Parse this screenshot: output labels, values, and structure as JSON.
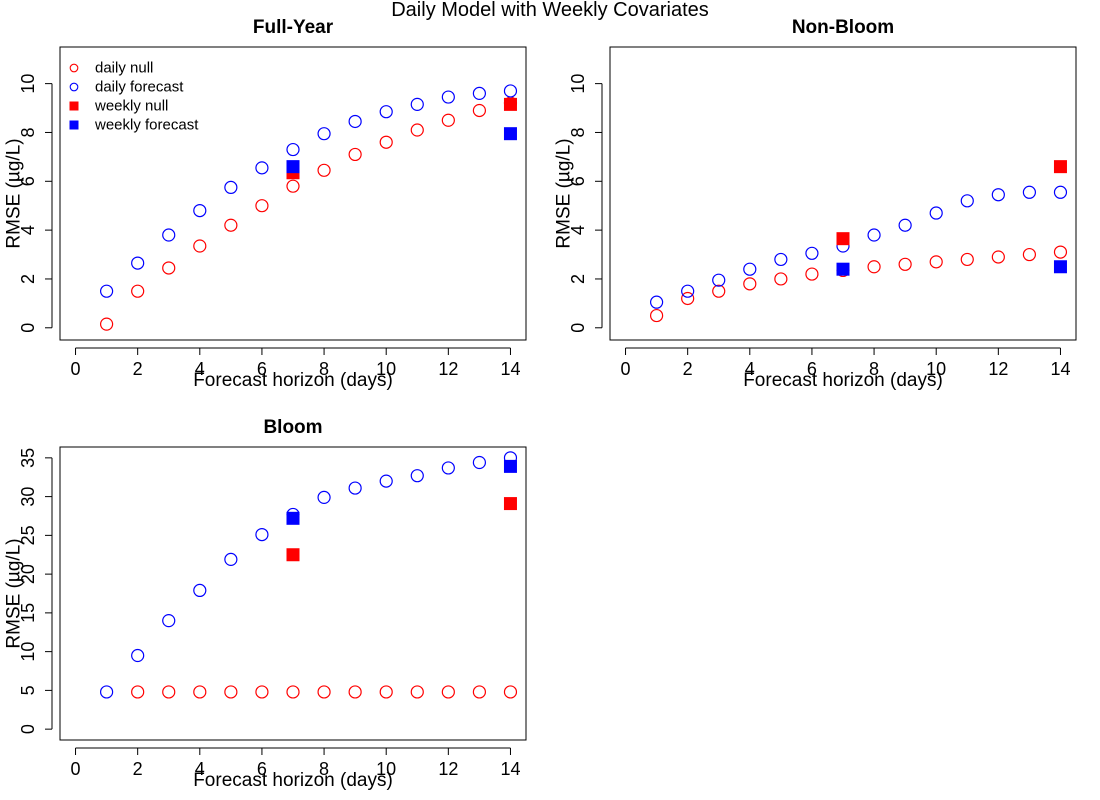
{
  "figure": {
    "title": "Daily Model with Weekly Covariates"
  },
  "colors": {
    "null": "#ff0000",
    "forecast": "#0000ff"
  },
  "legend": {
    "placement": "top-left of Full-Year panel",
    "entries": [
      {
        "label": "daily null",
        "marker": "open-circle",
        "color": "#ff0000"
      },
      {
        "label": "daily forecast",
        "marker": "open-circle",
        "color": "#0000ff"
      },
      {
        "label": "weekly null",
        "marker": "filled-square",
        "color": "#ff0000"
      },
      {
        "label": "weekly forecast",
        "marker": "filled-square",
        "color": "#0000ff"
      }
    ]
  },
  "chart_data": [
    {
      "type": "scatter",
      "title": "Full-Year",
      "xlabel": "Forecast horizon (days)",
      "ylabel": "RMSE (µg/L)",
      "xlim": [
        -0.5,
        14.5
      ],
      "ylim": [
        -0.5,
        11.5
      ],
      "xticks": [
        0,
        2,
        4,
        6,
        8,
        10,
        12,
        14
      ],
      "yticks": [
        0,
        2,
        4,
        6,
        8,
        10
      ],
      "grid": false,
      "series": [
        {
          "name": "daily null",
          "marker": "open-circle",
          "color": "#ff0000",
          "x": [
            1,
            2,
            3,
            4,
            5,
            6,
            7,
            8,
            9,
            10,
            11,
            12,
            13,
            14
          ],
          "y": [
            0.15,
            1.5,
            2.45,
            3.35,
            4.2,
            5.0,
            5.8,
            6.45,
            7.1,
            7.6,
            8.1,
            8.5,
            8.9,
            9.2
          ]
        },
        {
          "name": "daily forecast",
          "marker": "open-circle",
          "color": "#0000ff",
          "x": [
            1,
            2,
            3,
            4,
            5,
            6,
            7,
            8,
            9,
            10,
            11,
            12,
            13,
            14
          ],
          "y": [
            1.5,
            2.65,
            3.8,
            4.8,
            5.75,
            6.55,
            7.3,
            7.95,
            8.45,
            8.85,
            9.15,
            9.45,
            9.6,
            9.7
          ]
        },
        {
          "name": "weekly null",
          "marker": "filled-square",
          "color": "#ff0000",
          "x": [
            7,
            14
          ],
          "y": [
            6.35,
            9.15
          ]
        },
        {
          "name": "weekly forecast",
          "marker": "filled-square",
          "color": "#0000ff",
          "x": [
            7,
            14
          ],
          "y": [
            6.6,
            7.95
          ]
        }
      ]
    },
    {
      "type": "scatter",
      "title": "Non-Bloom",
      "xlabel": "Forecast horizon (days)",
      "ylabel": "RMSE (µg/L)",
      "xlim": [
        -0.5,
        14.5
      ],
      "ylim": [
        -0.5,
        11.5
      ],
      "xticks": [
        0,
        2,
        4,
        6,
        8,
        10,
        12,
        14
      ],
      "yticks": [
        0,
        2,
        4,
        6,
        8,
        10
      ],
      "grid": false,
      "series": [
        {
          "name": "daily null",
          "marker": "open-circle",
          "color": "#ff0000",
          "x": [
            1,
            2,
            3,
            4,
            5,
            6,
            7,
            8,
            9,
            10,
            11,
            12,
            13,
            14
          ],
          "y": [
            0.5,
            1.2,
            1.5,
            1.8,
            2.0,
            2.2,
            2.35,
            2.5,
            2.6,
            2.7,
            2.8,
            2.9,
            3.0,
            3.1
          ]
        },
        {
          "name": "daily forecast",
          "marker": "open-circle",
          "color": "#0000ff",
          "x": [
            1,
            2,
            3,
            4,
            5,
            6,
            7,
            8,
            9,
            10,
            11,
            12,
            13,
            14
          ],
          "y": [
            1.05,
            1.5,
            1.95,
            2.4,
            2.8,
            3.05,
            3.35,
            3.8,
            4.2,
            4.7,
            5.2,
            5.45,
            5.55,
            5.55
          ]
        },
        {
          "name": "weekly null",
          "marker": "filled-square",
          "color": "#ff0000",
          "x": [
            7,
            14
          ],
          "y": [
            3.65,
            6.6
          ]
        },
        {
          "name": "weekly forecast",
          "marker": "filled-square",
          "color": "#0000ff",
          "x": [
            7,
            14
          ],
          "y": [
            2.4,
            2.5
          ]
        }
      ]
    },
    {
      "type": "scatter",
      "title": "Bloom",
      "xlabel": "Forecast horizon (days)",
      "ylabel": "RMSE (µg/L)",
      "xlim": [
        -0.5,
        14.5
      ],
      "ylim": [
        -1.4,
        36.4
      ],
      "xticks": [
        0,
        2,
        4,
        6,
        8,
        10,
        12,
        14
      ],
      "yticks": [
        0,
        5,
        10,
        15,
        20,
        25,
        30,
        35
      ],
      "grid": false,
      "series": [
        {
          "name": "daily null",
          "marker": "open-circle",
          "color": "#ff0000",
          "x": [
            2,
            3,
            4,
            5,
            6,
            7,
            8,
            9,
            10,
            11,
            12,
            13,
            14
          ],
          "y": [
            4.8,
            4.8,
            4.8,
            4.8,
            4.8,
            4.8,
            4.8,
            4.8,
            4.8,
            4.8,
            4.8,
            4.8,
            4.8
          ]
        },
        {
          "name": "daily forecast",
          "marker": "open-circle",
          "color": "#0000ff",
          "x": [
            1,
            2,
            3,
            4,
            5,
            6,
            7,
            8,
            9,
            10,
            11,
            12,
            13,
            14
          ],
          "y": [
            4.8,
            9.5,
            14.0,
            17.9,
            21.9,
            25.1,
            27.7,
            29.9,
            31.1,
            32.0,
            32.7,
            33.7,
            34.4,
            35.0
          ]
        },
        {
          "name": "weekly null",
          "marker": "filled-square",
          "color": "#ff0000",
          "x": [
            7,
            14
          ],
          "y": [
            22.5,
            29.1
          ]
        },
        {
          "name": "weekly forecast",
          "marker": "filled-square",
          "color": "#0000ff",
          "x": [
            7,
            14
          ],
          "y": [
            27.2,
            33.9
          ]
        }
      ]
    }
  ]
}
